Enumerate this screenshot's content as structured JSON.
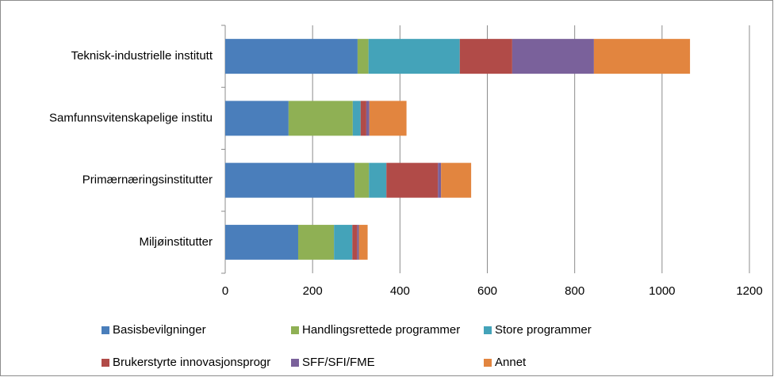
{
  "chart_data": {
    "type": "stacked-bar-horizontal",
    "categories": [
      "Teknisk-industrielle institutt",
      "Samfunnsvitenskapelige institu",
      "Primærnæringsinstitutter",
      "Miljøinstitutter"
    ],
    "series": [
      {
        "name": "Basisbevilgninger",
        "color": "#4a7ebb",
        "values": [
          303,
          145,
          296,
          167
        ]
      },
      {
        "name": "Handlingsrettede programmer",
        "color": "#8fb054",
        "values": [
          25,
          147,
          33,
          82
        ]
      },
      {
        "name": "Store programmer",
        "color": "#44a3b9",
        "values": [
          209,
          18,
          40,
          42
        ]
      },
      {
        "name": "Brukerstyrte innovasjonsprogr",
        "color": "#b14b48",
        "values": [
          120,
          13,
          118,
          11
        ]
      },
      {
        "name": "SFF/SFI/FME",
        "color": "#7a619b",
        "values": [
          187,
          7,
          7,
          4
        ]
      },
      {
        "name": "Annet",
        "color": "#e2853f",
        "values": [
          220,
          85,
          69,
          20
        ]
      }
    ],
    "xlim": [
      0,
      1200
    ],
    "xticks": [
      0,
      200,
      400,
      600,
      800,
      1000,
      1200
    ],
    "grid": true
  }
}
